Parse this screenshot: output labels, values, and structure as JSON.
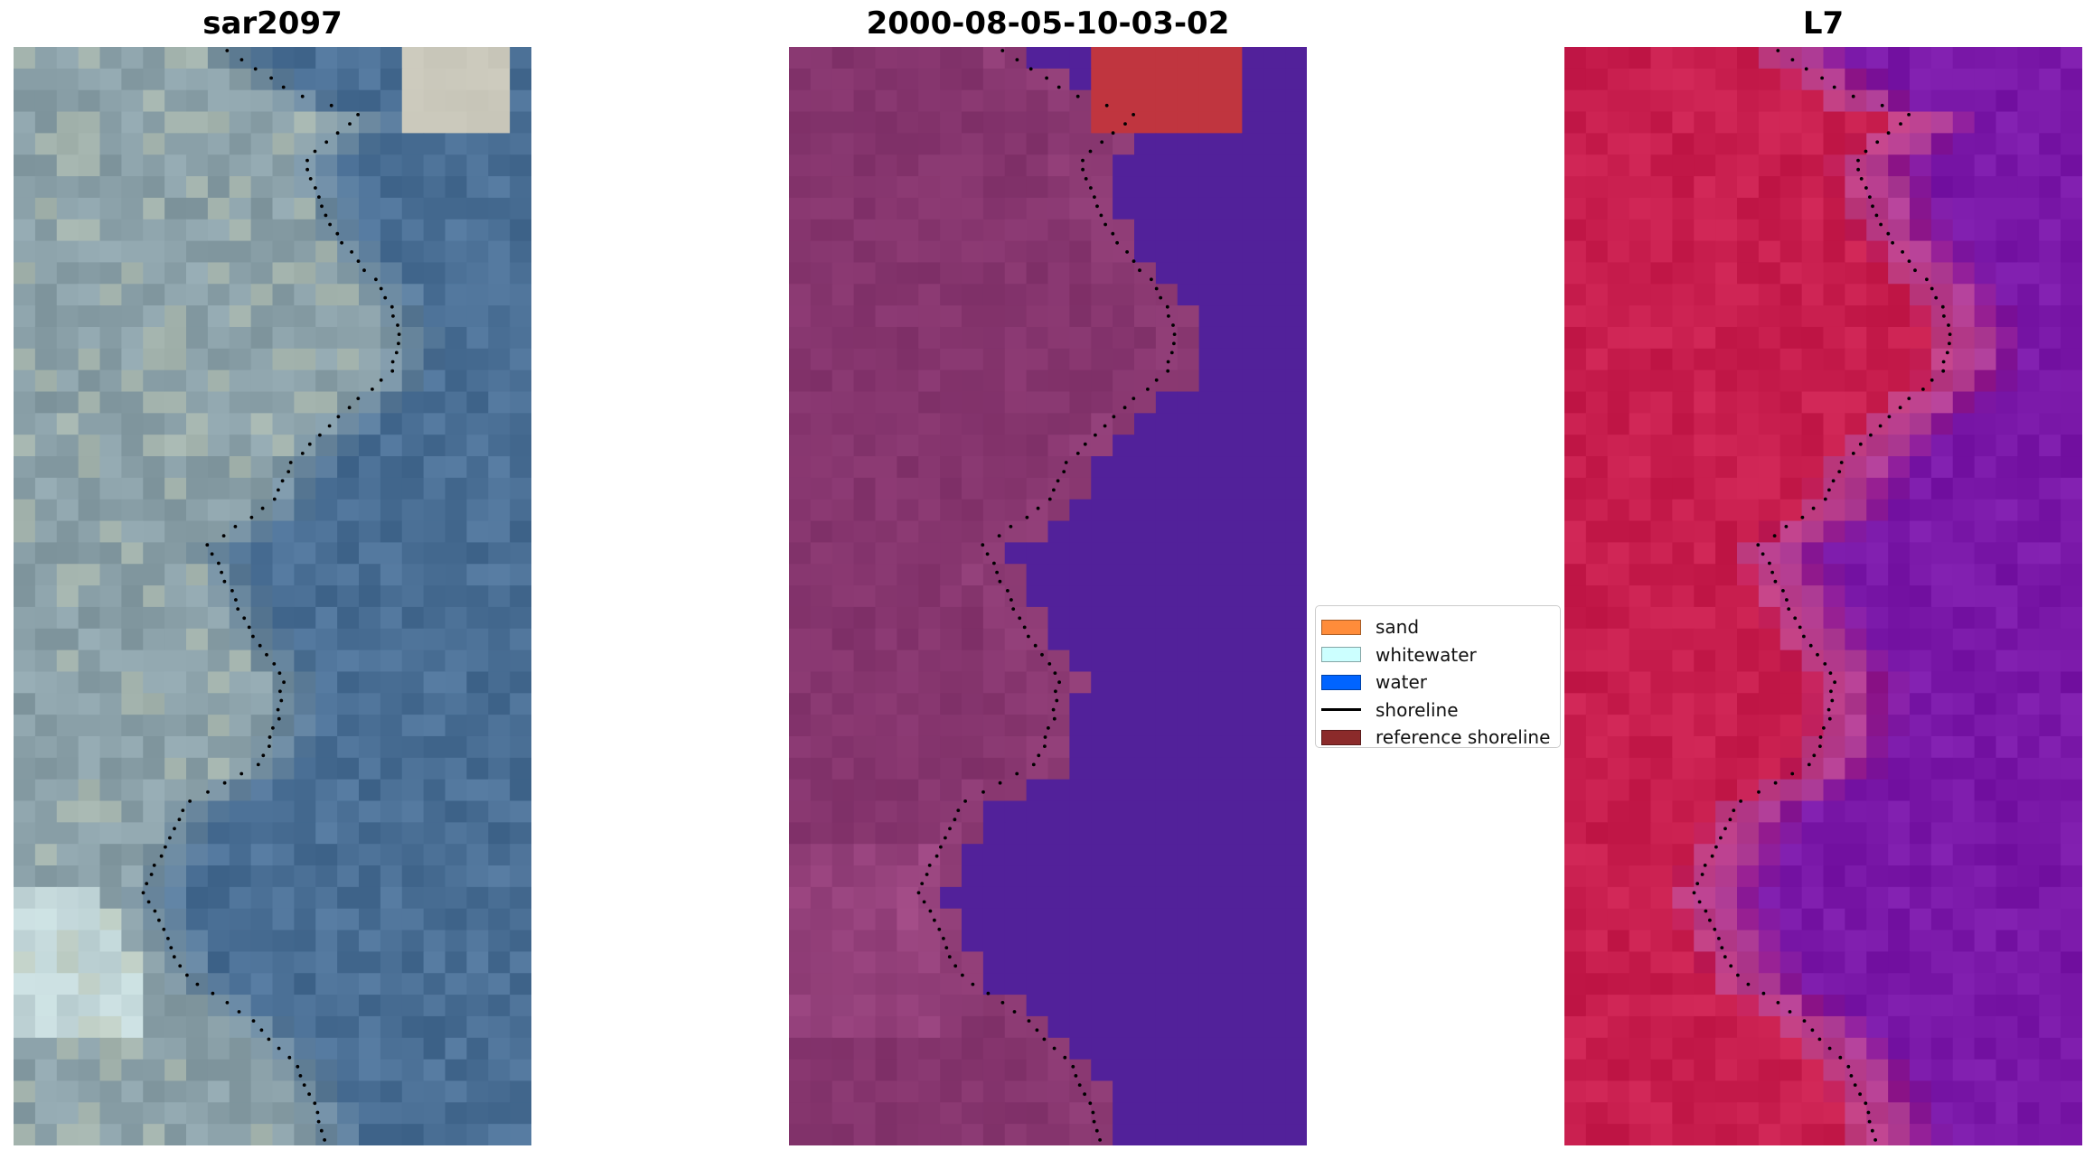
{
  "figure": {
    "panels": [
      {
        "title": "sar2097",
        "kind": "rgb"
      },
      {
        "title": "2000-08-05-10-03-02",
        "kind": "classified"
      },
      {
        "title": "L7",
        "kind": "mndwi"
      }
    ]
  },
  "legend": {
    "items": [
      {
        "label": "sand",
        "color": "#ff8c3a",
        "kind": "patch"
      },
      {
        "label": "whitewater",
        "color": "#ccffff",
        "kind": "patch"
      },
      {
        "label": "water",
        "color": "#0064ff",
        "kind": "patch"
      },
      {
        "label": "shoreline",
        "color": "#000000",
        "kind": "line"
      },
      {
        "label": "reference shoreline",
        "color": "#8b2a2a",
        "kind": "patch"
      }
    ]
  },
  "colors": {
    "rgb_water": "#4a6f95",
    "rgb_land": "#8aa0a8",
    "class_land": "#7e2f67",
    "class_water": "#52219a",
    "class_ref": "#c0353f",
    "mndwi_land": "#c81e4e",
    "mndwi_water": "#7a18a8",
    "shoreline_dots": "#000000"
  }
}
